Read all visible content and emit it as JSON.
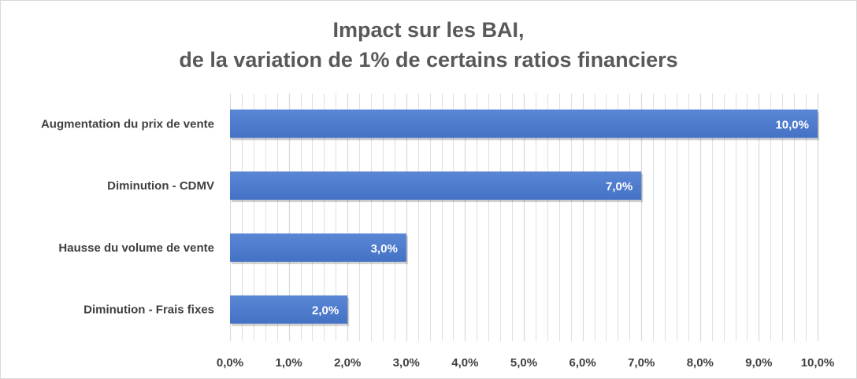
{
  "chart_data": {
    "type": "bar",
    "orientation": "horizontal",
    "title_lines": [
      "Impact sur les BAI,",
      "de la variation de 1% de certains ratios financiers"
    ],
    "categories": [
      "Augmentation du prix de vente",
      "Diminution - CDMV",
      "Hausse du volume de vente",
      "Diminution - Frais fixes"
    ],
    "values": [
      10.0,
      7.0,
      3.0,
      2.0
    ],
    "value_labels": [
      "10,0%",
      "7,0%",
      "3,0%",
      "2,0%"
    ],
    "x_ticks": [
      "0,0%",
      "1,0%",
      "2,0%",
      "3,0%",
      "4,0%",
      "5,0%",
      "6,0%",
      "7,0%",
      "8,0%",
      "9,0%",
      "10,0%"
    ],
    "xlim": [
      0,
      10
    ],
    "grid": true,
    "minor_grid_step": 0.2,
    "bar_color": "#4472c4",
    "bar_color_light": "#5b86d6",
    "title_color": "#595959",
    "label_color": "#404040",
    "grid_color": "#d9d9d9"
  }
}
